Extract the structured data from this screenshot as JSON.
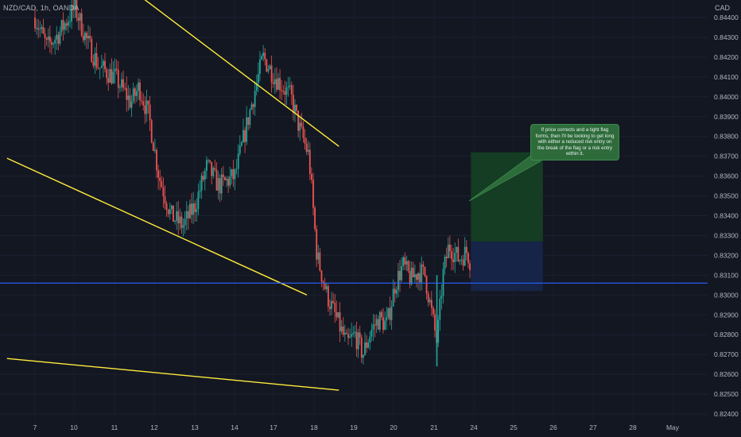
{
  "symbol_label": "NZD/CAD, 1h, OANDA",
  "currency_label": "CAD",
  "annotation_text": "If price corrects and a tight flag forms, then I'll be looking to get long with either a reduced risk entry on the break of the flag or a risk entry within it.",
  "colors": {
    "background": "#131722",
    "up_candle": "#26a69a",
    "down_candle": "#ef5350",
    "trendline": "#ffeb3b",
    "horizontal_level": "#2962ff",
    "target_zone": "#143d23",
    "stop_zone": "#162447",
    "callout": "#2e6b3b",
    "axis_text": "#b2b5be"
  },
  "chart_data": {
    "type": "candlestick",
    "title": "",
    "ylim": [
      0.8236,
      0.8447
    ],
    "price_ticks": [
      "0.84400",
      "0.84300",
      "0.84200",
      "0.84100",
      "0.84000",
      "0.83900",
      "0.83800",
      "0.83700",
      "0.83600",
      "0.83500",
      "0.83400",
      "0.83300",
      "0.83200",
      "0.83100",
      "0.83000",
      "0.82900",
      "0.82800",
      "0.82700",
      "0.82600",
      "0.82500",
      "0.82400"
    ],
    "date_ticks": [
      "7",
      "10",
      "11",
      "12",
      "13",
      "14",
      "17",
      "18",
      "19",
      "20",
      "21",
      "24",
      "25",
      "26",
      "27",
      "28",
      "May"
    ],
    "close_path": [
      {
        "day": 0,
        "price": 0.844
      },
      {
        "day": 0.3,
        "price": 0.8425
      },
      {
        "day": 0.6,
        "price": 0.8432
      },
      {
        "day": 1,
        "price": 0.8445
      },
      {
        "day": 1.3,
        "price": 0.8428
      },
      {
        "day": 1.6,
        "price": 0.8415
      },
      {
        "day": 2,
        "price": 0.841
      },
      {
        "day": 2.4,
        "price": 0.8397
      },
      {
        "day": 2.6,
        "price": 0.8405
      },
      {
        "day": 2.85,
        "price": 0.839
      },
      {
        "day": 3.1,
        "price": 0.836
      },
      {
        "day": 3.4,
        "price": 0.834
      },
      {
        "day": 3.7,
        "price": 0.8335
      },
      {
        "day": 4,
        "price": 0.8345
      },
      {
        "day": 4.3,
        "price": 0.8365
      },
      {
        "day": 4.6,
        "price": 0.8355
      },
      {
        "day": 5,
        "price": 0.836
      },
      {
        "day": 5.4,
        "price": 0.8395
      },
      {
        "day": 5.7,
        "price": 0.842
      },
      {
        "day": 6,
        "price": 0.841
      },
      {
        "day": 6.4,
        "price": 0.84
      },
      {
        "day": 6.6,
        "price": 0.8385
      },
      {
        "day": 6.85,
        "price": 0.837
      },
      {
        "day": 7.05,
        "price": 0.832
      },
      {
        "day": 7.3,
        "price": 0.83
      },
      {
        "day": 7.6,
        "price": 0.8285
      },
      {
        "day": 7.8,
        "price": 0.8275
      },
      {
        "day": 8,
        "price": 0.828
      },
      {
        "day": 8.2,
        "price": 0.827
      },
      {
        "day": 8.4,
        "price": 0.8282
      },
      {
        "day": 8.6,
        "price": 0.8288
      },
      {
        "day": 8.8,
        "price": 0.8285
      },
      {
        "day": 9,
        "price": 0.8305
      },
      {
        "day": 9.2,
        "price": 0.8315
      },
      {
        "day": 9.4,
        "price": 0.8308
      },
      {
        "day": 9.6,
        "price": 0.8312
      },
      {
        "day": 9.75,
        "price": 0.831
      },
      {
        "day": 10.05,
        "price": 0.8276
      },
      {
        "day": 10.2,
        "price": 0.831
      },
      {
        "day": 10.35,
        "price": 0.8325
      },
      {
        "day": 10.6,
        "price": 0.8318
      },
      {
        "day": 10.8,
        "price": 0.8322
      },
      {
        "day": 10.9,
        "price": 0.8316
      }
    ],
    "trendlines": [
      {
        "from": {
          "day": 2.35,
          "price": 0.8455
        },
        "to": {
          "day": 7.6,
          "price": 0.8375
        }
      },
      {
        "from": {
          "day": -0.7,
          "price": 0.8369
        },
        "to": {
          "day": 6.8,
          "price": 0.83
        }
      },
      {
        "from": {
          "day": -0.7,
          "price": 0.8268
        },
        "to": {
          "day": 7.6,
          "price": 0.8252
        }
      }
    ],
    "horizontal_level": 0.8306,
    "position": {
      "start_day": 10.9,
      "end_day": 12.7,
      "target": 0.8372,
      "entry": 0.8327,
      "stop": 0.8302
    }
  }
}
